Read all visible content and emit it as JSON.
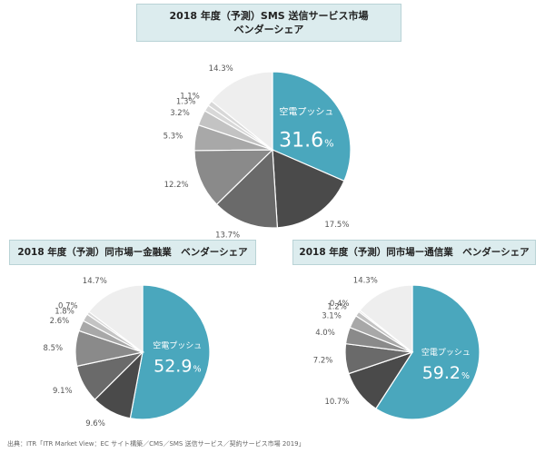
{
  "colors": {
    "highlight": "#4aa7bd",
    "slices": [
      "#4aa7bd",
      "#4a4a4a",
      "#6a6a6a",
      "#8a8a8a",
      "#a8a8a8",
      "#c3c3c3",
      "#d8d8d8",
      "#eeeeee"
    ]
  },
  "chart_data": [
    {
      "type": "pie",
      "title_line1": "2018 年度（予測）SMS 送信サービス市場",
      "title_line2": "ベンダーシェア",
      "highlight_label": "空電プッシュ",
      "highlight_value": "31.6",
      "percent_sign": "%",
      "slices": [
        {
          "value": 31.6,
          "label": "31.6%"
        },
        {
          "value": 17.5,
          "label": "17.5%"
        },
        {
          "value": 13.7,
          "label": "13.7%"
        },
        {
          "value": 12.2,
          "label": "12.2%"
        },
        {
          "value": 5.3,
          "label": "5.3%"
        },
        {
          "value": 3.2,
          "label": "3.2%"
        },
        {
          "value": 1.3,
          "label": "1.3%"
        },
        {
          "value": 1.1,
          "label": "1.1%"
        },
        {
          "value": 14.3,
          "label": "14.3%"
        }
      ]
    },
    {
      "type": "pie",
      "title": "2018 年度（予測）同市場ー金融業　ベンダーシェア",
      "highlight_label": "空電プッシュ",
      "highlight_value": "52.9",
      "percent_sign": "%",
      "slices": [
        {
          "value": 52.9,
          "label": "52.9%"
        },
        {
          "value": 9.6,
          "label": "9.6%"
        },
        {
          "value": 9.1,
          "label": "9.1%"
        },
        {
          "value": 8.5,
          "label": "8.5%"
        },
        {
          "value": 2.6,
          "label": "2.6%"
        },
        {
          "value": 1.8,
          "label": "1.8%"
        },
        {
          "value": 0.7,
          "label": "0.7%"
        },
        {
          "value": 14.7,
          "label": "14.7%"
        }
      ]
    },
    {
      "type": "pie",
      "title": "2018 年度（予測）同市場ー通信業　ベンダーシェア",
      "highlight_label": "空電プッシュ",
      "highlight_value": "59.2",
      "percent_sign": "%",
      "slices": [
        {
          "value": 59.2,
          "label": "59.2%"
        },
        {
          "value": 10.7,
          "label": "10.7%"
        },
        {
          "value": 7.2,
          "label": "7.2%"
        },
        {
          "value": 4.0,
          "label": "4.0%"
        },
        {
          "value": 3.1,
          "label": "3.1%"
        },
        {
          "value": 1.2,
          "label": "1.2%"
        },
        {
          "value": 0.4,
          "label": "0.4%"
        },
        {
          "value": 14.3,
          "label": "14.3%"
        }
      ]
    }
  ],
  "source": "出典：ITR「ITR Market View：EC サイト構築／CMS／SMS 送信サービス／契約サービス市場 2019」"
}
